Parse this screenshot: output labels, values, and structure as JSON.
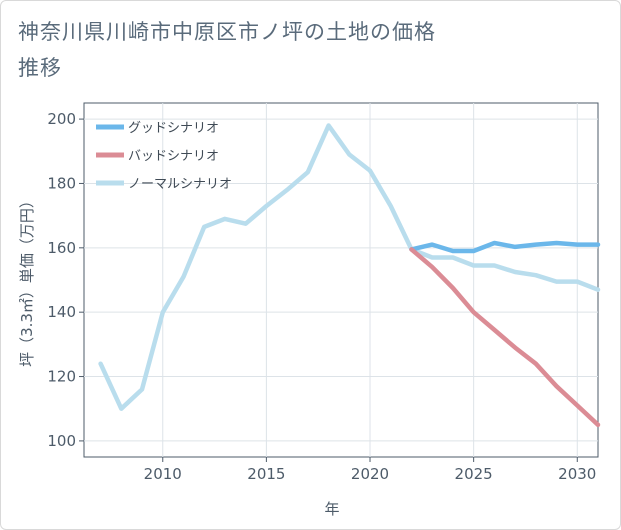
{
  "chart_data": {
    "type": "line",
    "title": "神奈川県川崎市中原区市ノ坪の土地の価格推移",
    "xlabel": "年",
    "ylabel": "坪（3.3㎡）単価（万円）",
    "xlim": [
      2006.2,
      2031
    ],
    "ylim": [
      95,
      205
    ],
    "xticks": [
      2010,
      2015,
      2020,
      2025,
      2030
    ],
    "yticks": [
      100,
      120,
      140,
      160,
      180,
      200
    ],
    "grid": true,
    "legend_position": "top-left",
    "series": [
      {
        "name": "グッドシナリオ",
        "color": "#6bb7ea",
        "x": [
          2022,
          2023,
          2024,
          2025,
          2026,
          2027,
          2028,
          2029,
          2030,
          2031
        ],
        "values": [
          159.5,
          161,
          159,
          159,
          161.5,
          160.3,
          161,
          161.5,
          161,
          161
        ]
      },
      {
        "name": "バッドシナリオ",
        "color": "#db8c95",
        "x": [
          2022,
          2023,
          2024,
          2025,
          2026,
          2027,
          2028,
          2029,
          2030,
          2031
        ],
        "values": [
          159.5,
          154,
          147.5,
          140,
          134.5,
          129,
          124,
          117,
          111,
          105
        ]
      },
      {
        "name": "ノーマルシナリオ",
        "color": "#b9dded",
        "x": [
          2007,
          2008,
          2009,
          2010,
          2011,
          2012,
          2013,
          2014,
          2015,
          2016,
          2017,
          2018,
          2019,
          2020,
          2021,
          2022,
          2023,
          2024,
          2025,
          2026,
          2027,
          2028,
          2029,
          2030,
          2031
        ],
        "values": [
          124,
          110,
          116,
          140,
          151,
          166.5,
          169,
          167.5,
          173,
          178,
          183.5,
          198,
          189,
          184,
          173,
          159.5,
          157,
          157,
          154.5,
          154.5,
          152.5,
          151.5,
          149.5,
          149.5,
          147
        ]
      }
    ]
  }
}
